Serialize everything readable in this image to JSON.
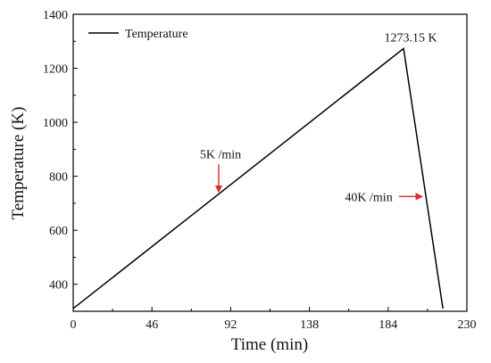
{
  "chart_data": {
    "type": "line",
    "title": "",
    "xlabel": "Time (min)",
    "ylabel": "Temperature (K)",
    "xlim": [
      0,
      230
    ],
    "ylim": [
      300,
      1400
    ],
    "xticks": [
      0,
      46,
      92,
      138,
      184,
      230
    ],
    "xtick_labels": [
      "0",
      "46",
      "92",
      "138",
      "184",
      "230"
    ],
    "yticks": [
      400,
      600,
      800,
      1000,
      1200,
      1400
    ],
    "ytick_labels": [
      "400",
      "600",
      "800",
      "1000",
      "1200",
      "1400"
    ],
    "grid": false,
    "legend": {
      "position": "top-left"
    },
    "series": [
      {
        "name": "Temperature",
        "color": "#000000",
        "x": [
          0,
          193,
          216
        ],
        "y": [
          310,
          1273.15,
          310
        ]
      }
    ],
    "annotations": [
      {
        "text": "1273.15 K",
        "x": 193,
        "y": 1273.15
      },
      {
        "text": "5K /min",
        "x": 85,
        "y": 735,
        "arrow_color": "#e0292f",
        "arrow_direction": "down"
      },
      {
        "text": "40K /min",
        "x": 205,
        "y": 725,
        "arrow_color": "#e0292f",
        "arrow_direction": "right"
      }
    ]
  }
}
